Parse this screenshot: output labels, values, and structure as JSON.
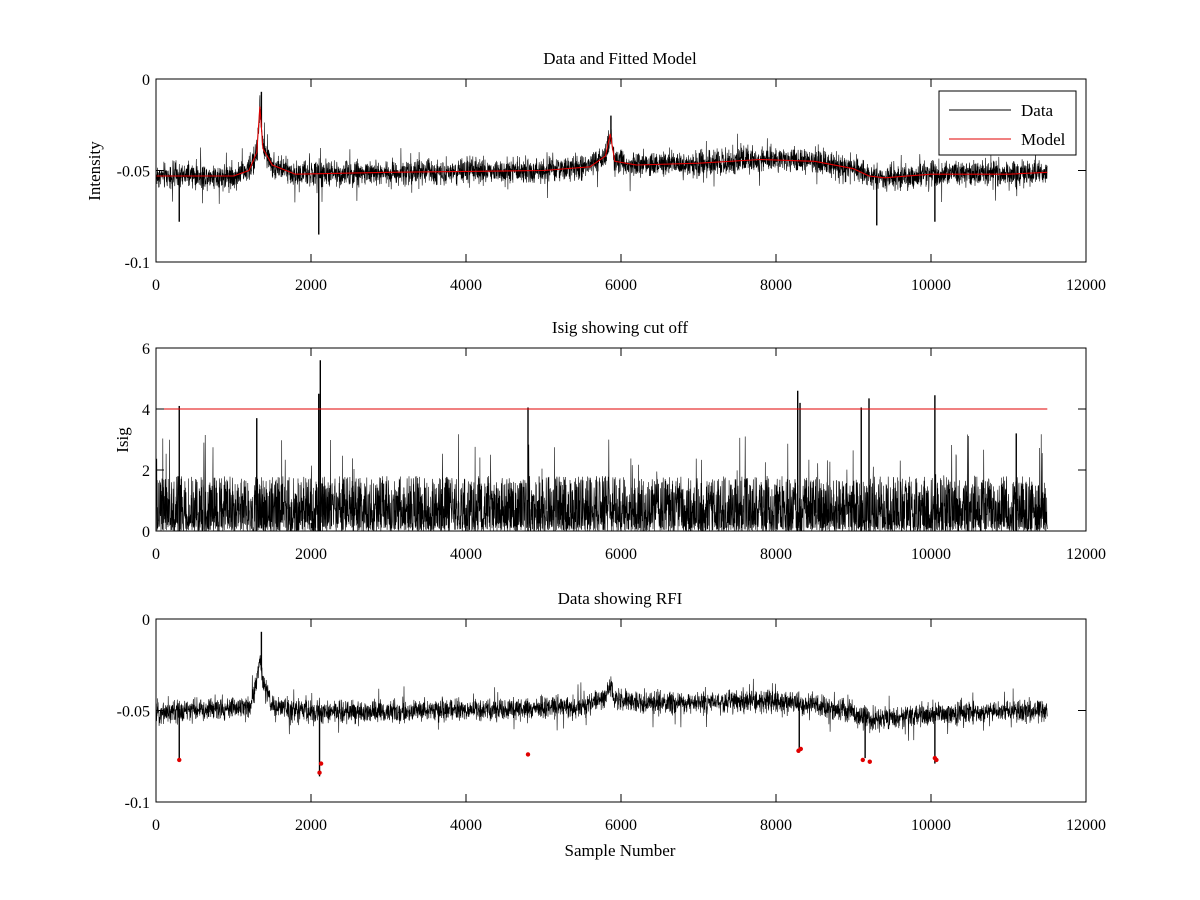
{
  "chart_data": [
    {
      "type": "line",
      "title": "Data and Fitted Model",
      "xlabel": "",
      "ylabel": "Intensity",
      "xlim": [
        0,
        12000
      ],
      "ylim": [
        -0.1,
        0
      ],
      "xticks": [
        0,
        2000,
        4000,
        6000,
        8000,
        10000,
        12000
      ],
      "xtick_labels": [
        "0",
        "2000",
        "4000",
        "6000",
        "8000",
        "10000",
        "12000"
      ],
      "yticks": [
        -0.1,
        -0.05,
        0
      ],
      "ytick_labels": [
        "-0.1",
        "-0.05",
        "0"
      ],
      "grid": false,
      "legend": {
        "placement": "top-right",
        "entries": [
          "Data",
          "Model"
        ]
      },
      "series": [
        {
          "name": "Data",
          "color": "#000000",
          "noise_amplitude": 0.008,
          "baseline_x": [
            0,
            1000,
            1200,
            1300,
            1340,
            1380,
            1500,
            1800,
            3000,
            5000,
            5600,
            5800,
            5860,
            5920,
            6200,
            7000,
            7800,
            8500,
            9000,
            9200,
            9400,
            10000,
            11000,
            11500
          ],
          "baseline_y": [
            -0.053,
            -0.053,
            -0.05,
            -0.04,
            -0.015,
            -0.038,
            -0.047,
            -0.052,
            -0.051,
            -0.05,
            -0.048,
            -0.042,
            -0.03,
            -0.045,
            -0.047,
            -0.046,
            -0.044,
            -0.045,
            -0.049,
            -0.053,
            -0.054,
            -0.052,
            -0.052,
            -0.051
          ],
          "spikes": [
            {
              "x": 300,
              "y": -0.078
            },
            {
              "x": 1360,
              "y": -0.007
            },
            {
              "x": 2100,
              "y": -0.085
            },
            {
              "x": 5870,
              "y": -0.02
            },
            {
              "x": 9300,
              "y": -0.08
            },
            {
              "x": 10050,
              "y": -0.078
            }
          ]
        },
        {
          "name": "Model",
          "color": "#e00000",
          "x": [
            0,
            1000,
            1200,
            1300,
            1340,
            1380,
            1500,
            1800,
            3000,
            5000,
            5600,
            5800,
            5860,
            5920,
            6200,
            7000,
            7800,
            8500,
            9000,
            9200,
            9400,
            10000,
            11000,
            11500
          ],
          "y": [
            -0.053,
            -0.053,
            -0.05,
            -0.04,
            -0.015,
            -0.038,
            -0.047,
            -0.052,
            -0.051,
            -0.05,
            -0.048,
            -0.042,
            -0.03,
            -0.045,
            -0.047,
            -0.046,
            -0.044,
            -0.045,
            -0.049,
            -0.053,
            -0.054,
            -0.052,
            -0.052,
            -0.051
          ]
        }
      ]
    },
    {
      "type": "line",
      "title": "Isig showing cut off",
      "xlabel": "",
      "ylabel": "Isig",
      "xlim": [
        0,
        12000
      ],
      "ylim": [
        0,
        6
      ],
      "xticks": [
        0,
        2000,
        4000,
        6000,
        8000,
        10000,
        12000
      ],
      "xtick_labels": [
        "0",
        "2000",
        "4000",
        "6000",
        "8000",
        "10000",
        "12000"
      ],
      "yticks": [
        0,
        2,
        4,
        6
      ],
      "ytick_labels": [
        "0",
        "2",
        "4",
        "6"
      ],
      "grid": false,
      "series": [
        {
          "color": "#000000",
          "x_range": [
            0,
            11500
          ],
          "typical_max": 1.8,
          "spikes": [
            {
              "x": 300,
              "y": 4.1
            },
            {
              "x": 1300,
              "y": 3.7
            },
            {
              "x": 2100,
              "y": 4.5
            },
            {
              "x": 2120,
              "y": 5.6
            },
            {
              "x": 4800,
              "y": 4.05
            },
            {
              "x": 8280,
              "y": 4.6
            },
            {
              "x": 8310,
              "y": 4.2
            },
            {
              "x": 9100,
              "y": 4.05
            },
            {
              "x": 9200,
              "y": 4.35
            },
            {
              "x": 10050,
              "y": 4.45
            },
            {
              "x": 11100,
              "y": 3.2
            }
          ]
        },
        {
          "color": "#e00000",
          "x": [
            0,
            11500
          ],
          "y": [
            4,
            4
          ]
        }
      ]
    },
    {
      "type": "line",
      "title": "Data showing RFI",
      "xlabel": "Sample Number",
      "ylabel": "",
      "xlim": [
        0,
        12000
      ],
      "ylim": [
        -0.1,
        0
      ],
      "xticks": [
        0,
        2000,
        4000,
        6000,
        8000,
        10000,
        12000
      ],
      "xtick_labels": [
        "0",
        "2000",
        "4000",
        "6000",
        "8000",
        "10000",
        "12000"
      ],
      "yticks": [
        -0.1,
        -0.05,
        0
      ],
      "ytick_labels": [
        "-0.1",
        "-0.05",
        "0"
      ],
      "grid": false,
      "series": [
        {
          "color": "#000000",
          "noise_amplitude": 0.007,
          "baseline_x": [
            0,
            1200,
            1300,
            1340,
            1380,
            1500,
            2000,
            4000,
            5500,
            5800,
            5860,
            5920,
            6500,
            8000,
            8600,
            9000,
            9200,
            9600,
            10500,
            11500
          ],
          "baseline_y": [
            -0.051,
            -0.048,
            -0.035,
            -0.02,
            -0.035,
            -0.048,
            -0.051,
            -0.05,
            -0.048,
            -0.042,
            -0.035,
            -0.045,
            -0.046,
            -0.045,
            -0.048,
            -0.051,
            -0.055,
            -0.053,
            -0.051,
            -0.05
          ],
          "spikes": [
            {
              "x": 300,
              "y": -0.078
            },
            {
              "x": 1360,
              "y": -0.007
            },
            {
              "x": 2110,
              "y": -0.086
            },
            {
              "x": 8300,
              "y": -0.073
            },
            {
              "x": 9150,
              "y": -0.076
            },
            {
              "x": 10050,
              "y": -0.079
            }
          ]
        },
        {
          "color": "#e00000",
          "marker": "dot",
          "x": [
            300,
            2110,
            2130,
            4800,
            8290,
            8320,
            9120,
            9210,
            10050,
            10070
          ],
          "y": [
            -0.077,
            -0.084,
            -0.079,
            -0.074,
            -0.072,
            -0.071,
            -0.077,
            -0.078,
            -0.076,
            -0.077
          ]
        }
      ]
    }
  ]
}
